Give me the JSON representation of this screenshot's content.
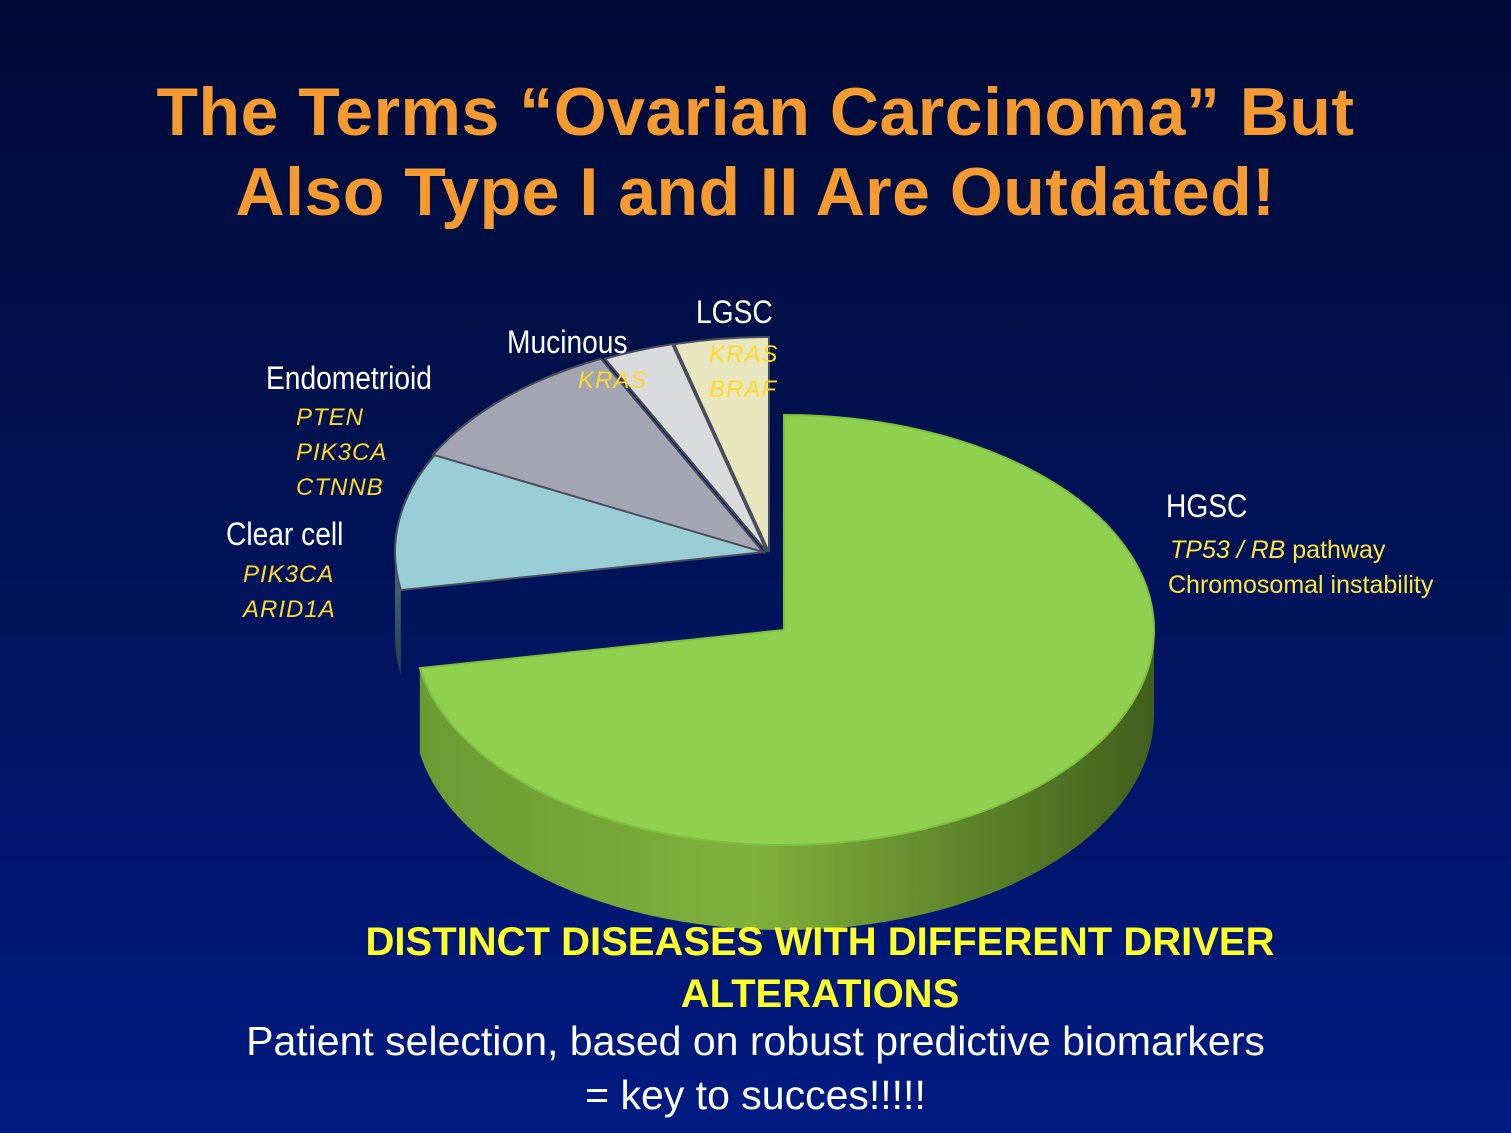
{
  "slide": {
    "title_line1": "The Terms “Ovarian Carcinoma” But",
    "title_line2": "Also Type I and II Are Outdated!",
    "bottom_heading_line1": "DISTINCT DISEASES  WITH DIFFERENT DRIVER",
    "bottom_heading_line2": "ALTERATIONS",
    "bottom_text_line1": "Patient selection, based on robust predictive biomarkers",
    "bottom_text_line2": "= key to succes!!!!!"
  },
  "labels": {
    "hgsc": {
      "name": "HGSC",
      "gene": "TP53 / RB",
      "gene_suffix": " pathway",
      "line2": "Chromosomal instability"
    },
    "clear_cell": {
      "name": "Clear cell",
      "genes": [
        "PIK3CA",
        "ARID1A"
      ]
    },
    "endometrioid": {
      "name": "Endometrioid",
      "genes": [
        "PTEN",
        "PIK3CA",
        "CTNNB"
      ]
    },
    "mucinous": {
      "name": "Mucinous",
      "genes": [
        "KRAS"
      ]
    },
    "lgsc": {
      "name": "LGSC",
      "genes": [
        "KRAS",
        "BRAF"
      ]
    }
  },
  "chart_data": {
    "type": "pie",
    "style": "3d-exploded",
    "slices": [
      {
        "label": "HGSC",
        "value": 70,
        "color": "#8fd14f"
      },
      {
        "label": "Clear cell",
        "value": 10,
        "color": "#99cdd5"
      },
      {
        "label": "Endometrioid",
        "value": 10,
        "color": "#a3a6b2"
      },
      {
        "label": "Mucinous",
        "value": 3,
        "color": "#d9dadc"
      },
      {
        "label": "LGSC",
        "value": 4,
        "color": "#e8e6be"
      }
    ],
    "legend": "none"
  }
}
